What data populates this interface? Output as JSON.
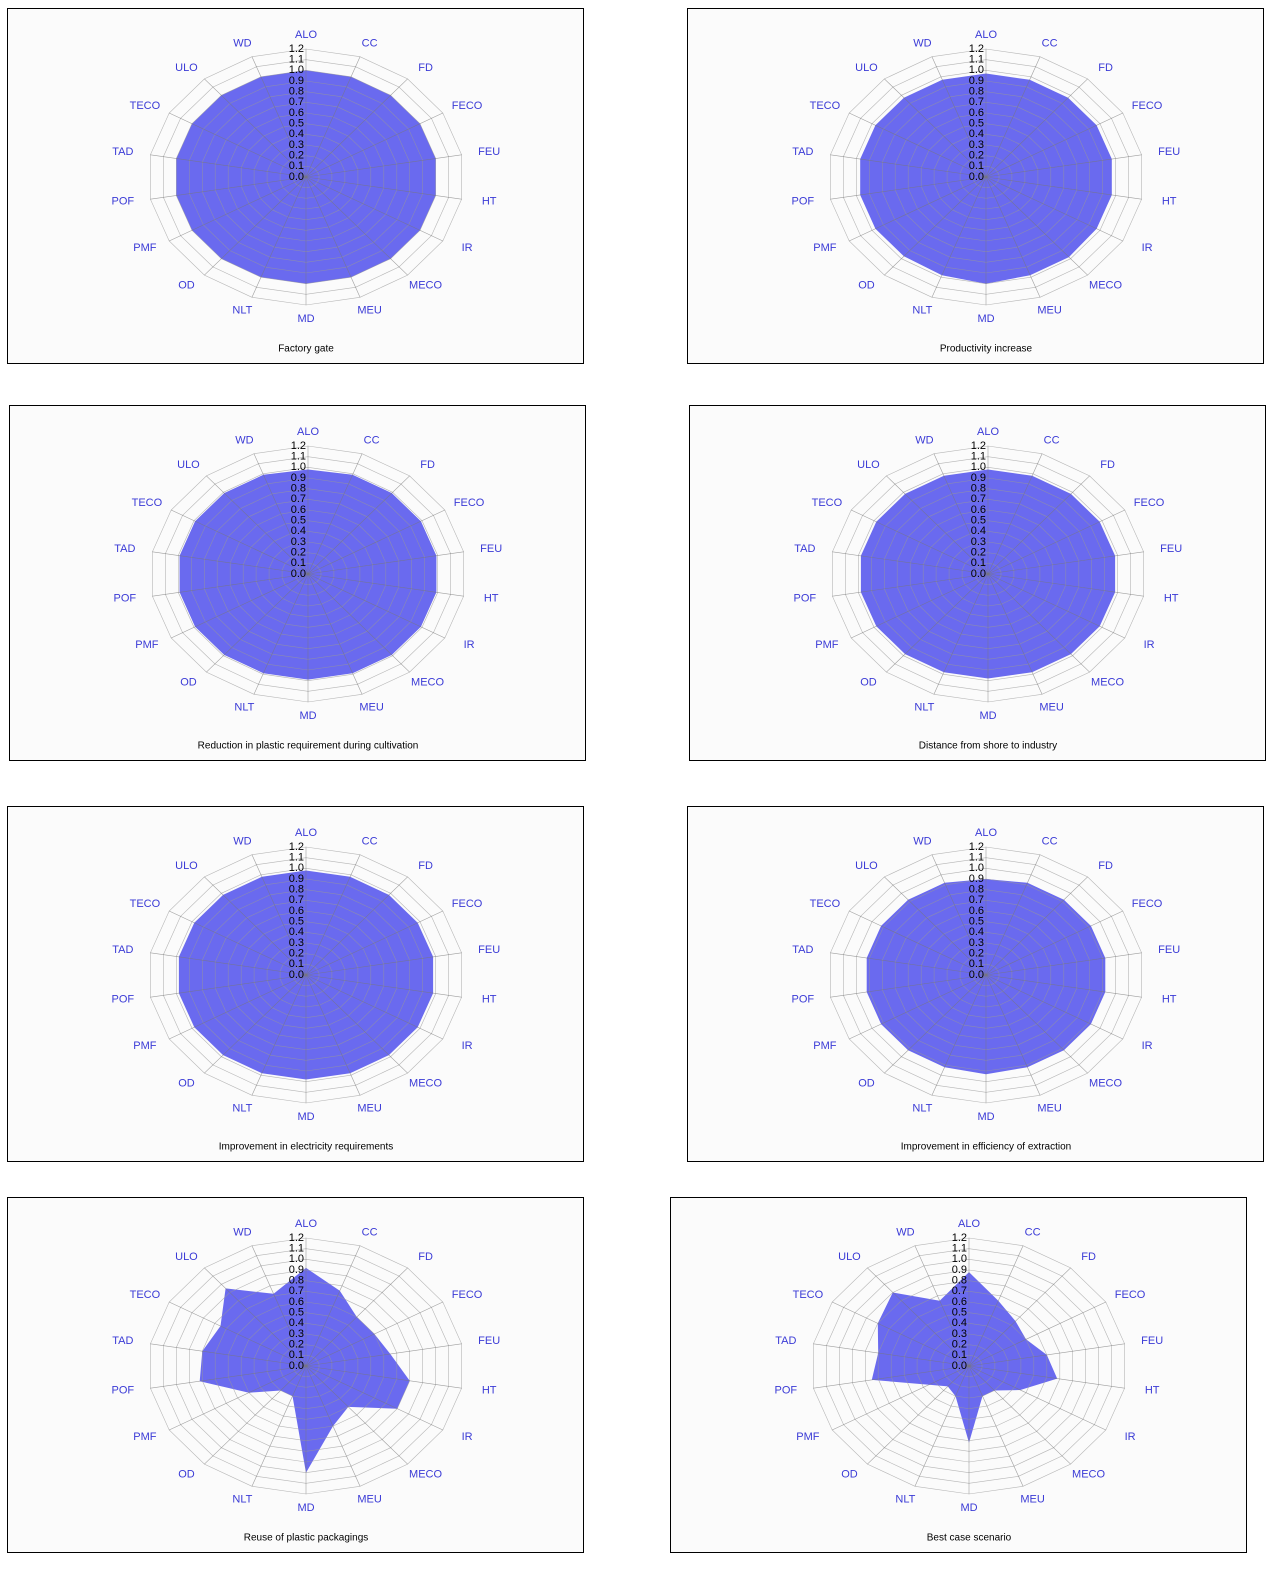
{
  "chart_data": [
    {
      "type": "radar",
      "title": "Factory gate",
      "color": "#6262ee",
      "categories": [
        "ALO",
        "CC",
        "FD",
        "FECO",
        "FEU",
        "HT",
        "IR",
        "MECO",
        "MEU",
        "MD",
        "NLT",
        "OD",
        "PMF",
        "POF",
        "TAD",
        "TECO",
        "ULO",
        "WD"
      ],
      "values": [
        1.0,
        1.0,
        1.0,
        1.0,
        1.0,
        1.0,
        1.0,
        1.0,
        1.0,
        1.0,
        1.0,
        1.0,
        1.0,
        1.0,
        1.0,
        1.0,
        1.0,
        1.0
      ],
      "ylim": [
        0,
        1.2
      ],
      "yticks": [
        {
          "value": 0,
          "label": "0.0"
        },
        0.1,
        0.2,
        0.3,
        0.4,
        0.5,
        0.6,
        0.7,
        0.8,
        0.9,
        {
          "value": 1,
          "label": "1.0"
        },
        1.1,
        1.2
      ],
      "grid": true
    },
    {
      "type": "radar",
      "title": "Productivity increase",
      "color": "#6262ee",
      "categories": [
        "ALO",
        "CC",
        "FD",
        "FECO",
        "FEU",
        "HT",
        "IR",
        "MECO",
        "MEU",
        "MD",
        "NLT",
        "OD",
        "PMF",
        "POF",
        "TAD",
        "TECO",
        "ULO",
        "WD"
      ],
      "values": [
        0.97,
        0.97,
        0.97,
        0.97,
        0.97,
        0.97,
        0.97,
        0.98,
        0.98,
        1.0,
        0.98,
        0.97,
        0.97,
        0.97,
        0.97,
        0.97,
        0.97,
        0.97
      ],
      "ylim": [
        0,
        1.2
      ],
      "yticks": [
        {
          "value": 0,
          "label": "0.0"
        },
        0.1,
        0.2,
        0.3,
        0.4,
        0.5,
        0.6,
        0.7,
        0.8,
        0.9,
        {
          "value": 1,
          "label": "1.0"
        },
        1.1,
        1.2
      ],
      "grid": true
    },
    {
      "type": "radar",
      "title": "Reduction in plastic requirement during cultivation",
      "color": "#6262ee",
      "categories": [
        "ALO",
        "CC",
        "FD",
        "FECO",
        "FEU",
        "HT",
        "IR",
        "MECO",
        "MEU",
        "MD",
        "NLT",
        "OD",
        "PMF",
        "POF",
        "TAD",
        "TECO",
        "ULO",
        "WD"
      ],
      "values": [
        0.98,
        0.99,
        0.99,
        0.99,
        0.99,
        0.99,
        0.99,
        0.99,
        0.99,
        0.99,
        0.99,
        0.99,
        0.99,
        0.99,
        0.99,
        0.99,
        0.99,
        0.99
      ],
      "ylim": [
        0,
        1.2
      ],
      "yticks": [
        {
          "value": 0,
          "label": "0.0"
        },
        0.1,
        0.2,
        0.3,
        0.4,
        0.5,
        0.6,
        0.7,
        0.8,
        0.9,
        {
          "value": 1,
          "label": "1.0"
        },
        1.1,
        1.2
      ],
      "grid": true
    },
    {
      "type": "radar",
      "title": "Distance from shore to industry",
      "color": "#6262ee",
      "categories": [
        "ALO",
        "CC",
        "FD",
        "FECO",
        "FEU",
        "HT",
        "IR",
        "MECO",
        "MEU",
        "MD",
        "NLT",
        "OD",
        "PMF",
        "POF",
        "TAD",
        "TECO",
        "ULO",
        "WD"
      ],
      "values": [
        0.98,
        0.98,
        0.98,
        0.98,
        0.98,
        0.98,
        0.98,
        0.98,
        0.98,
        0.98,
        0.98,
        0.98,
        0.98,
        0.98,
        0.98,
        0.98,
        0.98,
        0.98
      ],
      "ylim": [
        0,
        1.2
      ],
      "yticks": [
        {
          "value": 0,
          "label": "0.0"
        },
        0.1,
        0.2,
        0.3,
        0.4,
        0.5,
        0.6,
        0.7,
        0.8,
        0.9,
        {
          "value": 1,
          "label": "1.0"
        },
        1.1,
        1.2
      ],
      "grid": true
    },
    {
      "type": "radar",
      "title": "Improvement in electricity requirements",
      "color": "#6262ee",
      "categories": [
        "ALO",
        "CC",
        "FD",
        "FECO",
        "FEU",
        "HT",
        "IR",
        "MECO",
        "MEU",
        "MD",
        "NLT",
        "OD",
        "PMF",
        "POF",
        "TAD",
        "TECO",
        "ULO",
        "WD"
      ],
      "values": [
        0.98,
        0.98,
        0.98,
        0.98,
        0.98,
        0.98,
        0.98,
        0.98,
        0.98,
        0.98,
        0.98,
        0.98,
        0.98,
        0.98,
        0.98,
        0.98,
        0.98,
        0.98
      ],
      "ylim": [
        0,
        1.2
      ],
      "yticks": [
        {
          "value": 0,
          "label": "0.0"
        },
        0.1,
        0.2,
        0.3,
        0.4,
        0.5,
        0.6,
        0.7,
        0.8,
        0.9,
        {
          "value": 1,
          "label": "1.0"
        },
        1.1,
        1.2
      ],
      "grid": true
    },
    {
      "type": "radar",
      "title": "Improvement in efficiency of extraction",
      "color": "#6262ee",
      "categories": [
        "ALO",
        "CC",
        "FD",
        "FECO",
        "FEU",
        "HT",
        "IR",
        "MECO",
        "MEU",
        "MD",
        "NLT",
        "OD",
        "PMF",
        "POF",
        "TAD",
        "TECO",
        "ULO",
        "WD"
      ],
      "values": [
        0.9,
        0.92,
        0.92,
        0.92,
        0.92,
        0.92,
        0.92,
        0.92,
        0.92,
        0.93,
        0.92,
        0.92,
        0.92,
        0.92,
        0.92,
        0.92,
        0.92,
        0.92
      ],
      "ylim": [
        0,
        1.2
      ],
      "yticks": [
        {
          "value": 0,
          "label": "0.0"
        },
        0.1,
        0.2,
        0.3,
        0.4,
        0.5,
        0.6,
        0.7,
        0.8,
        0.9,
        {
          "value": 1,
          "label": "1.0"
        },
        1.1,
        1.2
      ],
      "grid": true
    },
    {
      "type": "radar",
      "title": "Reuse of plastic packagings",
      "color": "#6262ee",
      "categories": [
        "ALO",
        "CC",
        "FD",
        "FECO",
        "FEU",
        "HT",
        "IR",
        "MECO",
        "MEU",
        "MD",
        "NLT",
        "OD",
        "PMF",
        "POF",
        "TAD",
        "TECO",
        "ULO",
        "WD"
      ],
      "values": [
        0.92,
        0.75,
        0.6,
        0.6,
        0.65,
        0.8,
        0.8,
        0.5,
        0.6,
        1.0,
        0.3,
        0.3,
        0.5,
        0.82,
        0.8,
        0.75,
        0.95,
        0.72
      ],
      "ylim": [
        0,
        1.2
      ],
      "yticks": [
        {
          "value": 0,
          "label": "0.0"
        },
        0.1,
        0.2,
        0.3,
        0.4,
        0.5,
        0.6,
        0.7,
        0.8,
        0.9,
        {
          "value": 1,
          "label": "1.0"
        },
        1.1,
        1.2
      ],
      "grid": true
    },
    {
      "type": "radar",
      "title": "Best case scenario",
      "color": "#6262ee",
      "categories": [
        "ALO",
        "CC",
        "FD",
        "FECO",
        "FEU",
        "HT",
        "IR",
        "MECO",
        "MEU",
        "MD",
        "NLT",
        "OD",
        "PMF",
        "POF",
        "TAD",
        "TECO",
        "ULO",
        "WD"
      ],
      "values": [
        0.88,
        0.65,
        0.55,
        0.5,
        0.6,
        0.68,
        0.45,
        0.3,
        0.3,
        0.72,
        0.3,
        0.25,
        0.35,
        0.75,
        0.7,
        0.8,
        0.9,
        0.65
      ],
      "ylim": [
        0,
        1.2
      ],
      "yticks": [
        {
          "value": 0,
          "label": "0.0"
        },
        0.1,
        0.2,
        0.3,
        0.4,
        0.5,
        0.6,
        0.7,
        0.8,
        0.9,
        {
          "value": 1,
          "label": "1.0"
        },
        1.1,
        1.2
      ],
      "grid": true
    }
  ]
}
